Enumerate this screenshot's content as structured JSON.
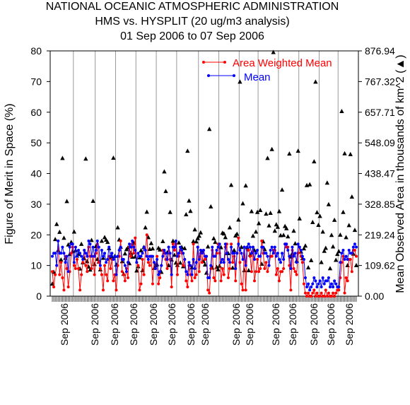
{
  "chart_data": {
    "type": "line",
    "title_lines": [
      "NATIONAL OCEANIC ATMOSPHERIC ADMINISTRATION",
      "HMS vs. HYSPLIT (20 ug/m3 analysis)",
      "01 Sep 2006 to 07 Sep 2006"
    ],
    "ylabel_left": "Figure of Merit in Space (%)",
    "ylabel_right": "Mean Observed Area in thousands of km^2 (▲)",
    "ylim_left": [
      0,
      80
    ],
    "yticks_left": [
      "0",
      "10",
      "20",
      "30",
      "40",
      "50",
      "60",
      "70",
      "80"
    ],
    "ylim_right": [
      0,
      876.94
    ],
    "yticks_right": [
      "0.00",
      "109.62",
      "219.24",
      "328.85",
      "438.47",
      "548.09",
      "657.71",
      "767.32",
      "876.94"
    ],
    "xtick_labels": [
      "Sep 2006",
      "Sep 2006",
      "Sep 2006",
      "Sep 2006",
      "Sep 2006",
      "Sep 2006",
      "Sep 2006",
      "Sep 2006",
      "Sep 2006",
      "Sep 2006",
      "Sep 2006",
      "Sep 2006",
      "Sep 2006",
      "Sep 2006",
      "Sep 2006"
    ],
    "x_count": 210,
    "legend": {
      "placement": "top-right"
    },
    "colors": {
      "awm": "#ff0000",
      "mean": "#0000ff",
      "area": "#000000",
      "grid": "#999999"
    },
    "series": [
      {
        "name": "Area Weighted Mean",
        "values": [
          8,
          3,
          7,
          10,
          18,
          7,
          11,
          6,
          2,
          13,
          9,
          3,
          8,
          14,
          16,
          10,
          9,
          12,
          9,
          2,
          7,
          11,
          15,
          10,
          8,
          16,
          13,
          9,
          13,
          7,
          14,
          17,
          11,
          9,
          7,
          2,
          10,
          7,
          5,
          13,
          9,
          12,
          5,
          7,
          2,
          10,
          13,
          18,
          8,
          7,
          5,
          9,
          6,
          16,
          13,
          17,
          14,
          19,
          11,
          10,
          2,
          4,
          12,
          7,
          15,
          20,
          11,
          10,
          13,
          4,
          11,
          9,
          13,
          4,
          6,
          10,
          15,
          14,
          12,
          9,
          16,
          12,
          3,
          17,
          15,
          17,
          7,
          13,
          15,
          14,
          10,
          12,
          5,
          3,
          10,
          7,
          5,
          17,
          6,
          7,
          16,
          8,
          14,
          11,
          15,
          12,
          13,
          2,
          1,
          9,
          15,
          6,
          5,
          14,
          17,
          14,
          5,
          9,
          7,
          16,
          17,
          6,
          9,
          17,
          11,
          13,
          5,
          14,
          19,
          11,
          4,
          2,
          16,
          2,
          15,
          15,
          13,
          8,
          16,
          5,
          8,
          12,
          8,
          9,
          18,
          14,
          9,
          11,
          8,
          10,
          13,
          13,
          15,
          15,
          7,
          9,
          5,
          8,
          8,
          9,
          17,
          16,
          16,
          10,
          2,
          15,
          9,
          8,
          7,
          14,
          16,
          13,
          11,
          4,
          1,
          0,
          1,
          0,
          0,
          1,
          2,
          0,
          1,
          0,
          0,
          1,
          0,
          0,
          2,
          0,
          1,
          0,
          0,
          1,
          0,
          1,
          2,
          2,
          6,
          11,
          13,
          1,
          6,
          5,
          12,
          12,
          8,
          15,
          15,
          13
        ]
      },
      {
        "name": "Mean",
        "values": [
          13,
          14,
          14,
          10,
          18,
          14,
          14,
          16,
          14,
          11,
          13,
          8,
          16,
          17,
          17,
          11,
          16,
          13,
          15,
          14,
          13,
          12,
          15,
          14,
          13,
          18,
          17,
          13,
          16,
          13,
          15,
          18,
          16,
          10,
          15,
          13,
          14,
          11,
          12,
          16,
          13,
          14,
          12,
          13,
          7,
          13,
          15,
          16,
          12,
          12,
          10,
          8,
          11,
          17,
          16,
          18,
          16,
          15,
          11,
          14,
          13,
          13,
          14,
          16,
          15,
          13,
          12,
          13,
          13,
          13,
          11,
          9,
          12,
          7,
          8,
          10,
          13,
          15,
          14,
          12,
          16,
          14,
          7,
          16,
          16,
          18,
          13,
          14,
          16,
          15,
          14,
          12,
          8,
          7,
          11,
          10,
          7,
          12,
          9,
          11,
          16,
          12,
          15,
          14,
          15,
          13,
          13,
          6,
          6,
          10,
          16,
          13,
          13,
          15,
          16,
          17,
          11,
          12,
          11,
          17,
          14,
          12,
          11,
          16,
          14,
          14,
          9,
          14,
          17,
          15,
          14,
          12,
          16,
          10,
          16,
          17,
          16,
          14,
          16,
          12,
          14,
          15,
          13,
          13,
          16,
          16,
          14,
          14,
          13,
          10,
          15,
          16,
          14,
          16,
          13,
          14,
          12,
          11,
          14,
          12,
          17,
          17,
          15,
          13,
          9,
          16,
          13,
          14,
          11,
          17,
          16,
          15,
          13,
          12,
          6,
          3,
          4,
          2,
          3,
          4,
          6,
          5,
          3,
          4,
          5,
          3,
          6,
          4,
          5,
          5,
          6,
          3,
          4,
          3,
          5,
          4,
          3,
          3,
          11,
          14,
          15,
          12,
          13,
          12,
          15,
          14,
          14,
          16,
          17,
          16
        ]
      },
      {
        "name": "area",
        "values": [
          44,
          86,
          203,
          257,
          164,
          229,
          130,
          493,
          208,
          136,
          339,
          184,
          150,
          193,
          160,
          230,
          164,
          144,
          150,
          98,
          186,
          120,
          135,
          491,
          124,
          105,
          94,
          200,
          340,
          114,
          178,
          132,
          123,
          95,
          197,
          136,
          210,
          201,
          193,
          171,
          138,
          141,
          494,
          143,
          112,
          245,
          202,
          176,
          124,
          79,
          152,
          167,
          173,
          117,
          154,
          140,
          190,
          141,
          91,
          106,
          138,
          163,
          92,
          175,
          245,
          301,
          210,
          168,
          189,
          170,
          100,
          110,
          113,
          172,
          166,
          86,
          196,
          445,
          375,
          156,
          110,
          300,
          130,
          197,
          147,
          119,
          111,
          191,
          119,
          175,
          106,
          171,
          292,
          519,
          341,
          304,
          102,
          196,
          238,
          195,
          207,
          215,
          227,
          159,
          124,
          112,
          83,
          177,
          597,
          320,
          101,
          206,
          193,
          104,
          95,
          108,
          174,
          226,
          223,
          210,
          153,
          153,
          245,
          397,
          101,
          164,
          216,
          222,
          273,
          766,
          175,
          331,
          92,
          395,
          174,
          92,
          148,
          303,
          215,
          164,
          230,
          300,
          260,
          307,
          115,
          195,
          167,
          294,
          493,
          252,
          297,
          525,
          872,
          233,
          256,
          247,
          303,
          217,
          380,
          218,
          250,
          242,
          213,
          509,
          141,
          153,
          233,
          188,
          126,
          519,
          277,
          159,
          135,
          170,
          180,
          396,
          102,
          399,
          128,
          264,
          481,
          766,
          299,
          254,
          286,
          121,
          230,
          161,
          172,
          405,
          328,
          99,
          218,
          177,
          272,
          129,
          150,
          160,
          219,
          661,
          300,
          510,
          210,
          110,
          253,
          507,
          355,
          151,
          236,
          110
        ]
      }
    ]
  }
}
